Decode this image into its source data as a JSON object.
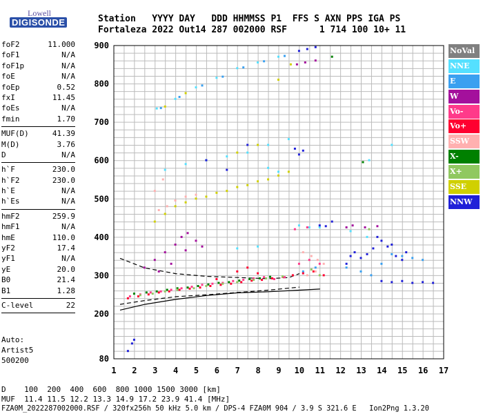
{
  "logo": {
    "line1": "Lowell",
    "line2": "DIGISONDE"
  },
  "header": {
    "line1": "Station   YYYY DAY   DDD HHMMSS P1  FFS S AXN PPS IGA PS",
    "line2": "Fortaleza 2022 Out14 287 002000 RSF      1 714 100 10+ 11"
  },
  "parameters": [
    [
      [
        "foF2",
        "11.000"
      ],
      [
        "foF1",
        "N/A"
      ],
      [
        "foF1p",
        "N/A"
      ],
      [
        "foE",
        "N/A"
      ],
      [
        "foEp",
        "0.52"
      ],
      [
        "fxI",
        "11.45"
      ],
      [
        "foEs",
        "N/A"
      ],
      [
        "fmin",
        "1.70"
      ]
    ],
    [
      [
        "MUF(D)",
        "41.39"
      ],
      [
        "M(D)",
        "3.76"
      ],
      [
        "D",
        "N/A"
      ]
    ],
    [
      [
        "h`F",
        "230.0"
      ],
      [
        "h`F2",
        "230.0"
      ],
      [
        "h`E",
        "N/A"
      ],
      [
        "h`Es",
        "N/A"
      ]
    ],
    [
      [
        "hmF2",
        "259.9"
      ],
      [
        "hmF1",
        "N/A"
      ],
      [
        "hmE",
        "110.0"
      ],
      [
        "yF2",
        "17.4"
      ],
      [
        "yF1",
        "N/A"
      ],
      [
        "yE",
        "20.0"
      ],
      [
        "B0",
        "21.4"
      ],
      [
        "B1",
        "1.28"
      ]
    ],
    [
      [
        "C-level",
        "22"
      ]
    ]
  ],
  "auto_info": [
    "Auto:",
    "Artist5",
    "500200"
  ],
  "footer": {
    "d_line": "D    100  200  400  600  800 1000 1500 3000 [km]",
    "muf_line": "MUF  11.4 11.5 12.2 13.3 14.9 17.2 23.9 41.4 [MHz]",
    "file_line": "FZA0M_2022287002000.RSF / 320fx256h 50 kHz 5.0 km / DPS-4 FZA0M 904 / 3.9 S 321.6 E   Ion2Png 1.3.20"
  },
  "legend": [
    {
      "label": "NoVal",
      "color": "#808080"
    },
    {
      "label": "NNE",
      "color": "#55e0ff"
    },
    {
      "label": "E",
      "color": "#3aa0f0"
    },
    {
      "label": "W",
      "color": "#a4109c"
    },
    {
      "label": "Vo-",
      "color": "#ff3a8a"
    },
    {
      "label": "Vo+",
      "color": "#ff0030"
    },
    {
      "label": "SSW",
      "color": "#ffb0b0"
    },
    {
      "label": "X-",
      "color": "#008000"
    },
    {
      "label": "X+",
      "color": "#90c860"
    },
    {
      "label": "SSE",
      "color": "#d0d000"
    },
    {
      "label": "NNW",
      "color": "#2020d8"
    }
  ],
  "chart_data": {
    "type": "scatter",
    "title": "",
    "xlabel": "",
    "ylabel": "",
    "xlim": [
      1,
      17
    ],
    "ylim": [
      80,
      900
    ],
    "xticks": [
      1,
      2,
      3,
      4,
      5,
      6,
      7,
      8,
      9,
      10,
      11,
      12,
      13,
      14,
      15,
      16,
      17
    ],
    "yticks": [
      80,
      200,
      300,
      400,
      500,
      600,
      700,
      800,
      900
    ],
    "grid": true,
    "grid_x_step": 0.5,
    "grid_y_step": 20,
    "legend_position": "right",
    "series": [
      {
        "name": "NoVal",
        "color": "#808080",
        "points": []
      },
      {
        "name": "NNE",
        "color": "#55e0ff",
        "points": [
          [
            3.1,
            735
          ],
          [
            4.0,
            760
          ],
          [
            5.0,
            790
          ],
          [
            6.0,
            815
          ],
          [
            7.0,
            840
          ],
          [
            8.0,
            855
          ],
          [
            9.0,
            870
          ],
          [
            3.5,
            575
          ],
          [
            4.5,
            590
          ],
          [
            5.5,
            600
          ],
          [
            6.5,
            610
          ],
          [
            7.5,
            620
          ],
          [
            8.5,
            640
          ],
          [
            9.5,
            655
          ],
          [
            10.0,
            430
          ],
          [
            10.5,
            425
          ],
          [
            11.0,
            425
          ],
          [
            8.5,
            580
          ],
          [
            9.0,
            570
          ],
          [
            7.0,
            370
          ],
          [
            8.0,
            375
          ],
          [
            12.5,
            415
          ],
          [
            13.3,
            400
          ],
          [
            14.5,
            640
          ],
          [
            13.4,
            600
          ]
        ]
      },
      {
        "name": "E",
        "color": "#3aa0f0",
        "points": [
          [
            3.3,
            736
          ],
          [
            4.2,
            765
          ],
          [
            5.3,
            795
          ],
          [
            6.3,
            818
          ],
          [
            7.3,
            842
          ],
          [
            8.3,
            858
          ],
          [
            9.3,
            872
          ],
          [
            12.3,
            320
          ],
          [
            13.0,
            310
          ],
          [
            13.5,
            300
          ],
          [
            14.0,
            330
          ],
          [
            14.5,
            355
          ],
          [
            15.0,
            350
          ],
          [
            15.5,
            345
          ],
          [
            16.0,
            340
          ],
          [
            10.2,
            310
          ],
          [
            10.8,
            320
          ]
        ]
      },
      {
        "name": "W",
        "color": "#a4109c",
        "points": [
          [
            2.5,
            320
          ],
          [
            3.0,
            340
          ],
          [
            3.5,
            360
          ],
          [
            4.0,
            380
          ],
          [
            4.3,
            400
          ],
          [
            4.6,
            410
          ],
          [
            5.0,
            390
          ],
          [
            5.3,
            375
          ],
          [
            3.2,
            310
          ],
          [
            3.8,
            330
          ],
          [
            4.5,
            365
          ],
          [
            9.9,
            850
          ],
          [
            10.3,
            855
          ],
          [
            10.8,
            860
          ],
          [
            12.3,
            425
          ],
          [
            12.6,
            430
          ],
          [
            13.2,
            425
          ],
          [
            13.8,
            428
          ]
        ]
      },
      {
        "name": "Vo-",
        "color": "#ff3a8a",
        "points": [
          [
            1.8,
            245
          ],
          [
            2.3,
            250
          ],
          [
            2.8,
            255
          ],
          [
            3.3,
            258
          ],
          [
            3.8,
            262
          ],
          [
            4.3,
            266
          ],
          [
            4.8,
            270
          ],
          [
            5.3,
            275
          ],
          [
            5.8,
            278
          ],
          [
            6.3,
            280
          ],
          [
            6.8,
            285
          ],
          [
            7.3,
            288
          ],
          [
            7.8,
            292
          ],
          [
            8.3,
            295
          ],
          [
            8.8,
            290
          ],
          [
            9.3,
            295
          ],
          [
            10.0,
            330
          ],
          [
            10.5,
            340
          ],
          [
            11.0,
            330
          ],
          [
            9.8,
            420
          ],
          [
            10.4,
            425
          ]
        ]
      },
      {
        "name": "Vo+",
        "color": "#ff0030",
        "points": [
          [
            1.7,
            240
          ],
          [
            2.2,
            245
          ],
          [
            2.7,
            250
          ],
          [
            3.2,
            255
          ],
          [
            3.7,
            258
          ],
          [
            4.2,
            262
          ],
          [
            4.7,
            265
          ],
          [
            5.2,
            268
          ],
          [
            5.7,
            272
          ],
          [
            6.2,
            275
          ],
          [
            6.7,
            278
          ],
          [
            7.2,
            282
          ],
          [
            7.7,
            286
          ],
          [
            8.2,
            288
          ],
          [
            8.7,
            292
          ],
          [
            9.2,
            296
          ],
          [
            9.7,
            300
          ],
          [
            10.2,
            305
          ],
          [
            10.7,
            310
          ],
          [
            11.2,
            300
          ],
          [
            7.0,
            310
          ],
          [
            7.5,
            320
          ],
          [
            8.0,
            305
          ],
          [
            6.0,
            290
          ]
        ]
      },
      {
        "name": "SSW",
        "color": "#ffb0b0",
        "points": [
          [
            3.2,
            470
          ],
          [
            3.6,
            480
          ],
          [
            4.0,
            495
          ],
          [
            4.5,
            505
          ],
          [
            5.0,
            510
          ],
          [
            3.0,
            520
          ],
          [
            3.4,
            550
          ],
          [
            10.2,
            360
          ],
          [
            10.6,
            350
          ],
          [
            10.9,
            340
          ],
          [
            11.2,
            330
          ],
          [
            10.4,
            300
          ],
          [
            10.8,
            310
          ]
        ]
      },
      {
        "name": "X-",
        "color": "#008000",
        "points": [
          [
            2.0,
            252
          ],
          [
            2.6,
            255
          ],
          [
            3.1,
            258
          ],
          [
            3.6,
            262
          ],
          [
            4.1,
            266
          ],
          [
            4.6,
            268
          ],
          [
            5.1,
            272
          ],
          [
            5.6,
            276
          ],
          [
            6.1,
            280
          ],
          [
            6.6,
            282
          ],
          [
            7.1,
            286
          ],
          [
            7.6,
            290
          ],
          [
            8.1,
            292
          ],
          [
            8.6,
            296
          ],
          [
            11.6,
            870
          ],
          [
            13.1,
            595
          ]
        ]
      },
      {
        "name": "X+",
        "color": "#90c860",
        "points": [
          [
            2.3,
            248
          ],
          [
            2.9,
            252
          ],
          [
            3.5,
            258
          ],
          [
            4.1,
            262
          ],
          [
            4.9,
            266
          ],
          [
            5.5,
            272
          ],
          [
            6.3,
            278
          ],
          [
            7.0,
            282
          ],
          [
            7.8,
            288
          ],
          [
            8.4,
            292
          ],
          [
            9.2,
            297
          ],
          [
            10.6,
            315
          ],
          [
            11.0,
            300
          ],
          [
            13.4,
            420
          ]
        ]
      },
      {
        "name": "SSE",
        "color": "#d0d000",
        "points": [
          [
            3.0,
            440
          ],
          [
            3.5,
            460
          ],
          [
            4.0,
            480
          ],
          [
            4.5,
            490
          ],
          [
            5.0,
            500
          ],
          [
            5.5,
            505
          ],
          [
            6.0,
            515
          ],
          [
            6.5,
            520
          ],
          [
            7.0,
            530
          ],
          [
            7.5,
            535
          ],
          [
            8.0,
            545
          ],
          [
            8.5,
            550
          ],
          [
            9.0,
            560
          ],
          [
            9.5,
            570
          ],
          [
            3.5,
            740
          ],
          [
            4.5,
            775
          ],
          [
            9.0,
            810
          ],
          [
            9.6,
            850
          ],
          [
            8.0,
            640
          ],
          [
            7.0,
            620
          ]
        ]
      },
      {
        "name": "NNW",
        "color": "#2020d8",
        "points": [
          [
            9.8,
            630
          ],
          [
            10.0,
            615
          ],
          [
            10.2,
            625
          ],
          [
            11.0,
            430
          ],
          [
            11.3,
            428
          ],
          [
            11.6,
            440
          ],
          [
            12.3,
            330
          ],
          [
            12.5,
            350
          ],
          [
            12.7,
            360
          ],
          [
            13.0,
            345
          ],
          [
            13.3,
            355
          ],
          [
            13.6,
            370
          ],
          [
            13.8,
            400
          ],
          [
            14.0,
            390
          ],
          [
            14.3,
            375
          ],
          [
            14.5,
            380
          ],
          [
            14.7,
            350
          ],
          [
            15.0,
            340
          ],
          [
            15.2,
            360
          ],
          [
            14.0,
            285
          ],
          [
            14.5,
            282
          ],
          [
            15.0,
            285
          ],
          [
            15.5,
            280
          ],
          [
            16.0,
            282
          ],
          [
            16.5,
            280
          ],
          [
            10.0,
            885
          ],
          [
            10.4,
            890
          ],
          [
            10.8,
            895
          ],
          [
            1.7,
            100
          ],
          [
            1.9,
            120
          ],
          [
            2.0,
            130
          ],
          [
            7.5,
            640
          ],
          [
            6.5,
            575
          ],
          [
            5.5,
            600
          ]
        ]
      }
    ],
    "curves": [
      {
        "name": "h-profile-lower",
        "style": "solid",
        "x": [
          1.3,
          2.5,
          4.0,
          5.5,
          7.0,
          8.5,
          10.0,
          11.0
        ],
        "y": [
          210,
          225,
          238,
          248,
          255,
          258,
          262,
          265
        ]
      },
      {
        "name": "h-profile-upper",
        "style": "dashed",
        "x": [
          1.3,
          2.5,
          4.0,
          5.5,
          7.0,
          8.5,
          9.5,
          10.0
        ],
        "y": [
          345,
          320,
          305,
          298,
          295,
          292,
          295,
          305
        ]
      },
      {
        "name": "h-profile-lower-dash",
        "style": "dashed",
        "x": [
          1.3,
          2.5,
          4.0,
          5.5,
          7.0,
          8.5,
          10.0
        ],
        "y": [
          225,
          235,
          245,
          250,
          256,
          262,
          270
        ]
      }
    ]
  }
}
